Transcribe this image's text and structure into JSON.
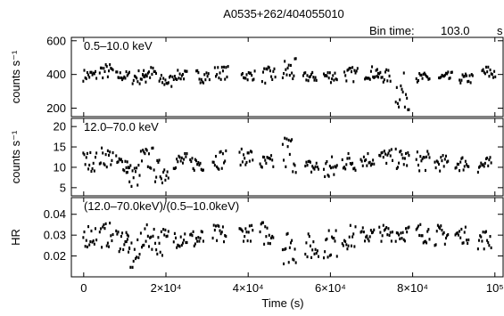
{
  "chart_data": {
    "type": "scatter",
    "title": "A0535+262/404055010",
    "bin_time_label": "Bin time:",
    "bin_time_value": "103.0",
    "bin_time_unit": "s",
    "xlabel": "Time (s)",
    "xlim": [
      -3000,
      102000
    ],
    "x_ticks": [
      0,
      20000,
      40000,
      60000,
      80000,
      100000
    ],
    "x_tick_labels": [
      "0",
      "2×10⁴",
      "4×10⁴",
      "6×10⁴",
      "8×10⁴",
      "10⁵"
    ],
    "panels": [
      {
        "id": "soft",
        "label": "0.5–10.0 keV",
        "ylabel": "counts s⁻¹",
        "ylim": [
          150,
          620
        ],
        "yticks": [
          200,
          400,
          600
        ],
        "ytick_labels": [
          "200",
          "400",
          "600"
        ],
        "groups": [
          {
            "t": 1500,
            "mean": 395,
            "amp": 35
          },
          {
            "t": 5500,
            "mean": 420,
            "amp": 45
          },
          {
            "t": 9500,
            "mean": 390,
            "amp": 30
          },
          {
            "t": 13500,
            "mean": 385,
            "amp": 45
          },
          {
            "t": 16000,
            "mean": 405,
            "amp": 45
          },
          {
            "t": 20000,
            "mean": 360,
            "amp": 40
          },
          {
            "t": 23500,
            "mean": 395,
            "amp": 30
          },
          {
            "t": 29000,
            "mean": 390,
            "amp": 40
          },
          {
            "t": 33500,
            "mean": 410,
            "amp": 40
          },
          {
            "t": 40000,
            "mean": 395,
            "amp": 30
          },
          {
            "t": 45000,
            "mean": 395,
            "amp": 50
          },
          {
            "t": 50000,
            "mean": 420,
            "amp": 75
          },
          {
            "t": 55000,
            "mean": 385,
            "amp": 30
          },
          {
            "t": 60000,
            "mean": 390,
            "amp": 40
          },
          {
            "t": 65000,
            "mean": 400,
            "amp": 45
          },
          {
            "t": 70000,
            "mean": 410,
            "amp": 40
          },
          {
            "t": 73000,
            "mean": 390,
            "amp": 40
          },
          {
            "t": 77500,
            "mean": 300,
            "amp": 110
          },
          {
            "t": 82500,
            "mean": 380,
            "amp": 30
          },
          {
            "t": 88000,
            "mean": 380,
            "amp": 35
          },
          {
            "t": 93000,
            "mean": 375,
            "amp": 30
          },
          {
            "t": 98500,
            "mean": 410,
            "amp": 45
          }
        ]
      },
      {
        "id": "hard",
        "label": "12.0–70.0 keV",
        "ylabel": "counts s⁻¹",
        "ylim": [
          3,
          22
        ],
        "yticks": [
          5,
          10,
          15,
          20
        ],
        "ytick_labels": [
          "5",
          "10",
          "15",
          "20"
        ],
        "groups": [
          {
            "t": 1500,
            "mean": 11.5,
            "amp": 2.5
          },
          {
            "t": 5500,
            "mean": 12.5,
            "amp": 2.5
          },
          {
            "t": 9500,
            "mean": 11,
            "amp": 2
          },
          {
            "t": 12000,
            "mean": 8,
            "amp": 3
          },
          {
            "t": 15500,
            "mean": 12,
            "amp": 3
          },
          {
            "t": 19000,
            "mean": 9,
            "amp": 3
          },
          {
            "t": 23500,
            "mean": 11.5,
            "amp": 2
          },
          {
            "t": 27500,
            "mean": 11,
            "amp": 2
          },
          {
            "t": 33000,
            "mean": 12,
            "amp": 2.5
          },
          {
            "t": 39500,
            "mean": 12.5,
            "amp": 2
          },
          {
            "t": 44500,
            "mean": 11,
            "amp": 2
          },
          {
            "t": 50000,
            "mean": 13.5,
            "amp": 5
          },
          {
            "t": 55500,
            "mean": 10,
            "amp": 2
          },
          {
            "t": 60000,
            "mean": 9.5,
            "amp": 3.5
          },
          {
            "t": 64500,
            "mean": 11.5,
            "amp": 2.5
          },
          {
            "t": 69000,
            "mean": 12,
            "amp": 2
          },
          {
            "t": 73500,
            "mean": 12.5,
            "amp": 2
          },
          {
            "t": 77500,
            "mean": 12,
            "amp": 2.5
          },
          {
            "t": 82500,
            "mean": 11.5,
            "amp": 2.5
          },
          {
            "t": 87000,
            "mean": 11,
            "amp": 2
          },
          {
            "t": 92000,
            "mean": 11,
            "amp": 2
          },
          {
            "t": 97500,
            "mean": 10.5,
            "amp": 2
          }
        ]
      },
      {
        "id": "hr",
        "label": "(12.0–70.0keV)/(0.5–10.0keV)",
        "ylabel": "HR",
        "ylim": [
          0.01,
          0.048
        ],
        "yticks": [
          0.02,
          0.03,
          0.04
        ],
        "ytick_labels": [
          "0.02",
          "0.03",
          "0.04"
        ],
        "groups": [
          {
            "t": 1500,
            "mean": 0.03,
            "amp": 0.006
          },
          {
            "t": 5500,
            "mean": 0.03,
            "amp": 0.006
          },
          {
            "t": 9500,
            "mean": 0.028,
            "amp": 0.006
          },
          {
            "t": 12000,
            "mean": 0.02,
            "amp": 0.008
          },
          {
            "t": 15500,
            "mean": 0.029,
            "amp": 0.006
          },
          {
            "t": 19000,
            "mean": 0.027,
            "amp": 0.007
          },
          {
            "t": 23500,
            "mean": 0.029,
            "amp": 0.005
          },
          {
            "t": 27500,
            "mean": 0.028,
            "amp": 0.005
          },
          {
            "t": 33000,
            "mean": 0.03,
            "amp": 0.005
          },
          {
            "t": 39500,
            "mean": 0.031,
            "amp": 0.004
          },
          {
            "t": 44500,
            "mean": 0.031,
            "amp": 0.006
          },
          {
            "t": 50000,
            "mean": 0.025,
            "amp": 0.009
          },
          {
            "t": 55500,
            "mean": 0.024,
            "amp": 0.007
          },
          {
            "t": 60000,
            "mean": 0.026,
            "amp": 0.007
          },
          {
            "t": 64500,
            "mean": 0.029,
            "amp": 0.006
          },
          {
            "t": 69000,
            "mean": 0.03,
            "amp": 0.004
          },
          {
            "t": 73500,
            "mean": 0.031,
            "amp": 0.004
          },
          {
            "t": 77500,
            "mean": 0.031,
            "amp": 0.004
          },
          {
            "t": 82500,
            "mean": 0.031,
            "amp": 0.005
          },
          {
            "t": 87000,
            "mean": 0.03,
            "amp": 0.005
          },
          {
            "t": 92000,
            "mean": 0.03,
            "amp": 0.004
          },
          {
            "t": 97500,
            "mean": 0.028,
            "amp": 0.005
          }
        ]
      }
    ],
    "grid": false,
    "marker_color": "#000000"
  }
}
